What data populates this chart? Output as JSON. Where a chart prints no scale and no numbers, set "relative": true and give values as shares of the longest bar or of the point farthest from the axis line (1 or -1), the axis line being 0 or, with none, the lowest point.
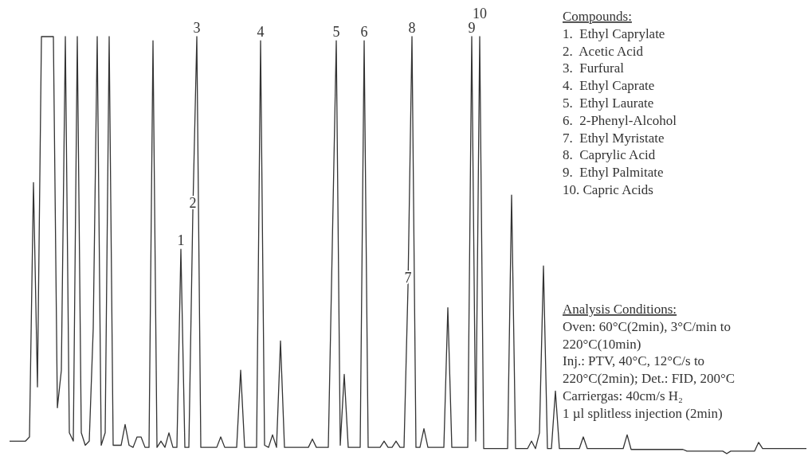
{
  "chart_data": {
    "type": "line",
    "relative": true,
    "categories": [
      null,
      null,
      null,
      null,
      null,
      null,
      null,
      null,
      null,
      null,
      null,
      null,
      null,
      null,
      null,
      null,
      null,
      null,
      null,
      null,
      null,
      null,
      null,
      null,
      null,
      null,
      null,
      null,
      null,
      null,
      null,
      null,
      null,
      null,
      null,
      null,
      null,
      null,
      null,
      null,
      null,
      null,
      null,
      "1",
      null,
      null,
      "2",
      "3",
      null,
      null,
      null,
      null,
      null,
      null,
      null,
      null,
      null,
      null,
      null,
      null,
      null,
      null,
      null,
      "4",
      null,
      null,
      null,
      null,
      null,
      null,
      null,
      null,
      null,
      null,
      null,
      null,
      null,
      null,
      null,
      null,
      null,
      null,
      "5",
      null,
      null,
      null,
      null,
      null,
      null,
      "6",
      null,
      null,
      null,
      null,
      null,
      null,
      null,
      null,
      null,
      null,
      "7",
      "8",
      null,
      null,
      null,
      null,
      null,
      null,
      null,
      null,
      null,
      null,
      null,
      null,
      null,
      null,
      "9",
      null,
      "10",
      null,
      null,
      null,
      null,
      null,
      null,
      null,
      null,
      null,
      null,
      null,
      null,
      null,
      null,
      null,
      null,
      null,
      null,
      null,
      null,
      null,
      null,
      null,
      null,
      null,
      null,
      null,
      null,
      null,
      null,
      null,
      null,
      null,
      null,
      null,
      null,
      null,
      null,
      null,
      null,
      null,
      null,
      null,
      null,
      null,
      null,
      null,
      null,
      null,
      null,
      null,
      null,
      null,
      null,
      null,
      null,
      null,
      null,
      null,
      null,
      null,
      null,
      null,
      null,
      null,
      null,
      null,
      null,
      null,
      null,
      null,
      null,
      null,
      null,
      null,
      null,
      null,
      null,
      null,
      null,
      null,
      null
    ],
    "series": [
      {
        "color": "#333333",
        "values": [
          0.03,
          0.03,
          0.03,
          0.03,
          0.03,
          0.04,
          0.65,
          0.16,
          1,
          1,
          1,
          1,
          0.11,
          0.2,
          1,
          0.05,
          0.03,
          1,
          0.05,
          0.02,
          0.03,
          0.3,
          1,
          0.02,
          0.05,
          1,
          0.02,
          0.02,
          0.02,
          0.07,
          0.02,
          0.015,
          0.04,
          0.04,
          0.015,
          0.015,
          0.99,
          0.015,
          0.03,
          0.015,
          0.05,
          0.015,
          0.015,
          0.49,
          0.015,
          0.015,
          0.58,
          1,
          0.015,
          0.015,
          0.015,
          0.015,
          0.015,
          0.04,
          0.015,
          0.015,
          0.015,
          0.015,
          0.2,
          0.015,
          0.015,
          0.015,
          0.015,
          0.99,
          0.02,
          0.015,
          0.045,
          0.015,
          0.27,
          0.015,
          0.015,
          0.015,
          0.015,
          0.015,
          0.015,
          0.015,
          0.035,
          0.015,
          0.015,
          0.015,
          0.015,
          0.5,
          0.99,
          0.02,
          0.19,
          0.015,
          0.015,
          0.015,
          0.015,
          0.99,
          0.015,
          0.015,
          0.015,
          0.015,
          0.03,
          0.015,
          0.015,
          0.03,
          0.015,
          0.015,
          0.4,
          1,
          0.015,
          0.015,
          0.06,
          0.015,
          0.015,
          0.015,
          0.015,
          0.015,
          0.35,
          0.015,
          0.015,
          0.015,
          0.015,
          0.015,
          1,
          0.03,
          1,
          0.012,
          0.012,
          0.012,
          0.012,
          0.012,
          0.012,
          0.012,
          0.62,
          0.012,
          0.012,
          0.012,
          0.012,
          0.03,
          0.012,
          0.05,
          0.45,
          0.012,
          0.012,
          0.15,
          0.012,
          0.012,
          0.012,
          0.012,
          0.012,
          0.012,
          0.04,
          0.012,
          0.012,
          0.012,
          0.012,
          0.012,
          0.012,
          0.012,
          0.012,
          0.012,
          0.012,
          0.045,
          0.01,
          0.01,
          0.01,
          0.01,
          0.01,
          0.01,
          0.01,
          0.01,
          0.01,
          0.01,
          0.01,
          0.01,
          0.01,
          0.01,
          0.006,
          0.006,
          0.006,
          0.006,
          0.006,
          0.006,
          0.006,
          0.006,
          0.006,
          0.006,
          0,
          0.006,
          0.006,
          0.006,
          0.006,
          0.006,
          0.006,
          0.006,
          0.027,
          0.012,
          0.012,
          0.012,
          0.012,
          0.012,
          0.012,
          0.012,
          0.012,
          0.012,
          0.012,
          0.012,
          0.012
        ]
      }
    ],
    "annotations": [
      "Compounds:\n1.  Ethyl Caprylate\n2.  Acetic Acid\n3.  Furfural\n4.  Ethyl Caprate\n5.  Ethyl Laurate\n6.  2-Phenyl-Alcohol\n7.  Ethyl Myristate\n8.  Caprylic Acid\n9.  Ethyl Palmitate\n10. Capric Acids",
      "Analysis Conditions:\nOven: 60°C(2min), 3°C/min to\n220°C(10min)\nInj.: PTV, 40°C, 12°C/s to\n220°C(2min); Det.: FID, 200°C\nCarriergas: 40cm/s H₂\n1 µl splitless injection (2min)"
    ]
  }
}
